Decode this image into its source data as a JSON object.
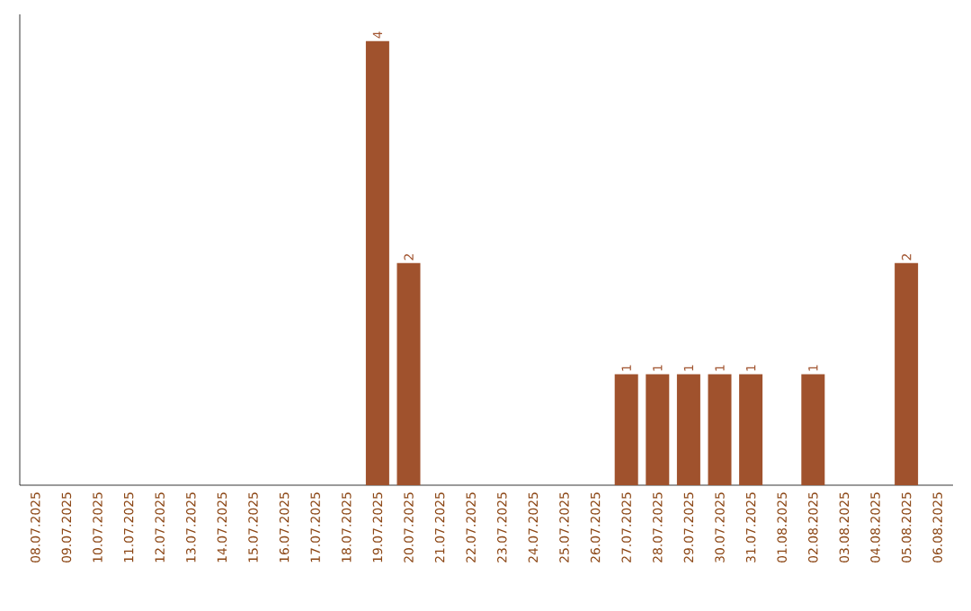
{
  "chart_data": {
    "type": "bar",
    "categories": [
      "08.07.2025",
      "09.07.2025",
      "10.07.2025",
      "11.07.2025",
      "12.07.2025",
      "13.07.2025",
      "14.07.2025",
      "15.07.2025",
      "16.07.2025",
      "17.07.2025",
      "18.07.2025",
      "19.07.2025",
      "20.07.2025",
      "21.07.2025",
      "22.07.2025",
      "23.07.2025",
      "24.07.2025",
      "25.07.2025",
      "26.07.2025",
      "27.07.2025",
      "28.07.2025",
      "29.07.2025",
      "30.07.2025",
      "31.07.2025",
      "01.08.2025",
      "02.08.2025",
      "03.08.2025",
      "04.08.2025",
      "05.08.2025",
      "06.08.2025"
    ],
    "values": [
      null,
      null,
      null,
      null,
      null,
      null,
      null,
      null,
      null,
      null,
      null,
      4,
      2,
      null,
      null,
      null,
      null,
      null,
      null,
      1,
      1,
      1,
      1,
      1,
      null,
      1,
      null,
      null,
      2,
      null
    ],
    "color": "#a0522d",
    "data_labels": true
  }
}
